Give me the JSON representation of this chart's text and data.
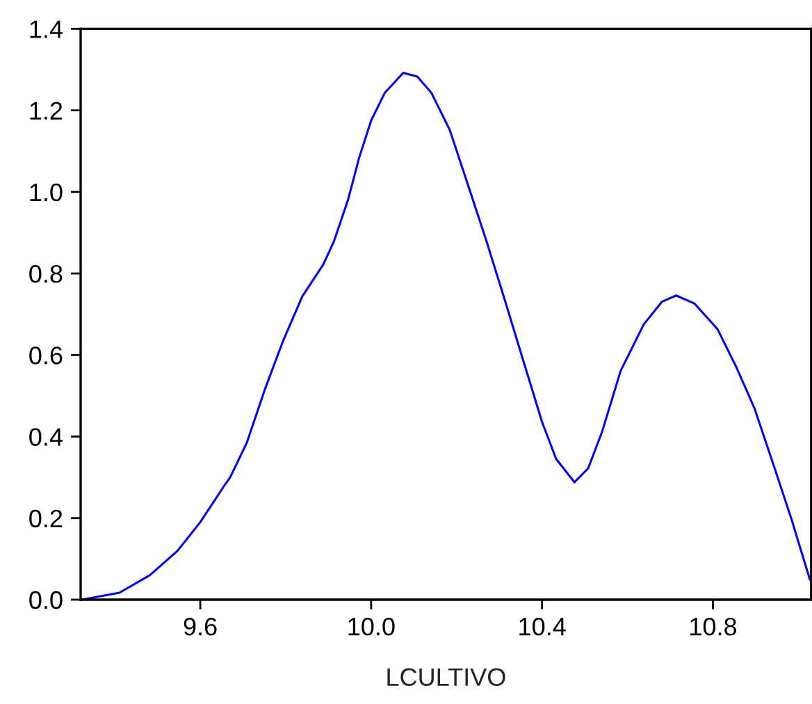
{
  "chart_data": {
    "type": "line",
    "xlabel": "LCULTIVO",
    "series": [
      {
        "color": "#0000ff",
        "x": [
          9.323,
          9.411,
          9.482,
          9.547,
          9.6,
          9.654,
          9.67,
          9.709,
          9.751,
          9.794,
          9.839,
          9.888,
          9.913,
          9.946,
          9.972,
          10.0,
          10.032,
          10.075,
          10.108,
          10.141,
          10.184,
          10.227,
          10.27,
          10.314,
          10.357,
          10.4,
          10.433,
          10.476,
          10.508,
          10.541,
          10.584,
          10.638,
          10.681,
          10.714,
          10.757,
          10.811,
          10.854,
          10.897,
          10.941,
          10.984,
          11.027
        ],
        "values": [
          0.0,
          0.017,
          0.06,
          0.12,
          0.19,
          0.276,
          0.3,
          0.385,
          0.515,
          0.635,
          0.744,
          0.822,
          0.879,
          0.981,
          1.084,
          1.175,
          1.243,
          1.292,
          1.283,
          1.243,
          1.152,
          1.016,
          0.879,
          0.731,
          0.583,
          0.436,
          0.345,
          0.288,
          0.322,
          0.413,
          0.561,
          0.675,
          0.731,
          0.746,
          0.726,
          0.663,
          0.572,
          0.47,
          0.333,
          0.197,
          0.049
        ]
      }
    ],
    "xlim": [
      9.32,
      11.03
    ],
    "xticks": [
      {
        "value": 9.6,
        "label": "9.6"
      },
      {
        "value": 10.0,
        "label": "10.0"
      },
      {
        "value": 10.4,
        "label": "10.4"
      },
      {
        "value": 10.8,
        "label": "10.8"
      }
    ],
    "ylim": [
      0.0,
      1.4
    ],
    "yticks": [
      {
        "value": 0.0,
        "label": "0.0"
      },
      {
        "value": 0.2,
        "label": "0.2"
      },
      {
        "value": 0.4,
        "label": "0.4"
      },
      {
        "value": 0.6,
        "label": "0.6"
      },
      {
        "value": 0.8,
        "label": "0.8"
      },
      {
        "value": 1.0,
        "label": "1.0"
      },
      {
        "value": 1.2,
        "label": "1.2"
      },
      {
        "value": 1.4,
        "label": "1.4"
      }
    ]
  }
}
